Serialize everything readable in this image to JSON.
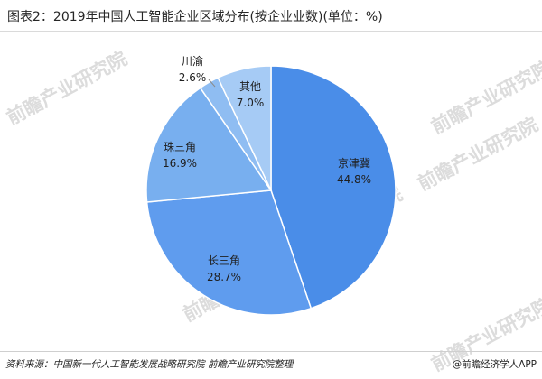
{
  "header": {
    "title": "图表2：2019年中国人工智能企业区域分布(按企业业数)(单位：%)"
  },
  "watermark": "前瞻产业研究院",
  "footer": {
    "source": "资料来源：中国新一代人工智能发展战略研究院 前瞻产业研究院整理",
    "brand": "@前瞻经济学人APP"
  },
  "chart_data": {
    "type": "pie",
    "title": "图表2：2019年中国人工智能企业区域分布(按企业业数)(单位：%)",
    "unit": "%",
    "slices": [
      {
        "name": "京津冀",
        "value": 44.8,
        "label": "44.8%",
        "color": "#4a8de8"
      },
      {
        "name": "长三角",
        "value": 28.7,
        "label": "28.7%",
        "color": "#5f9cee"
      },
      {
        "name": "珠三角",
        "value": 16.9,
        "label": "16.9%",
        "color": "#78afef"
      },
      {
        "name": "川渝",
        "value": 2.6,
        "label": "2.6%",
        "color": "#8fbdf2"
      },
      {
        "name": "其他",
        "value": 7.0,
        "label": "7.0%",
        "color": "#a6cbf5"
      }
    ],
    "start": "12 o'clock",
    "direction": "clockwise",
    "border_color": "#ffffff"
  }
}
